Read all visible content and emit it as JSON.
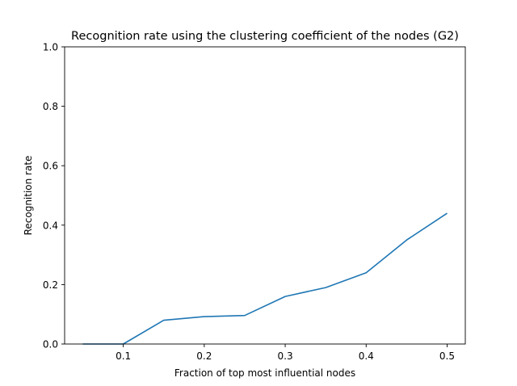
{
  "chart_data": {
    "type": "line",
    "title": "Recognition rate using the clustering coefficient of the nodes (G2)",
    "xlabel": "Fraction of top most influential nodes",
    "ylabel": "Recognition rate",
    "xlim": [
      0.0275,
      0.5225
    ],
    "ylim": [
      0,
      1
    ],
    "xticks": [
      "0.1",
      "0.2",
      "0.3",
      "0.4",
      "0.5"
    ],
    "yticks": [
      "0.0",
      "0.2",
      "0.4",
      "0.6",
      "0.8",
      "1.0"
    ],
    "grid": false,
    "series": [
      {
        "color": "#1f77b4",
        "x": [
          0.05,
          0.1,
          0.15,
          0.2,
          0.25,
          0.3,
          0.35,
          0.4,
          0.45,
          0.5
        ],
        "y": [
          0.0,
          0.0,
          0.08,
          0.092,
          0.096,
          0.16,
          0.19,
          0.24,
          0.35,
          0.44
        ]
      }
    ]
  }
}
